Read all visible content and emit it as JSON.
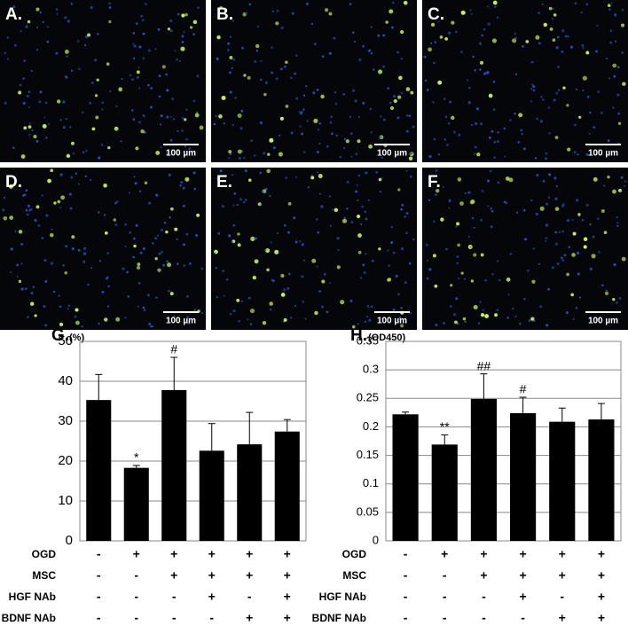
{
  "panels": [
    {
      "label": "A.",
      "scale_bar": "100 µm"
    },
    {
      "label": "B.",
      "scale_bar": "100 µm"
    },
    {
      "label": "C.",
      "scale_bar": "100 µm"
    },
    {
      "label": "D.",
      "scale_bar": "100 µm"
    },
    {
      "label": "E.",
      "scale_bar": "100 µm"
    },
    {
      "label": "F.",
      "scale_bar": "100 µm"
    }
  ],
  "chart_data": [
    {
      "type": "bar",
      "title": "G.",
      "y_label": "(%)",
      "color": "#000000",
      "categories": [
        null,
        null,
        null,
        null,
        null,
        null
      ],
      "values": [
        35.3,
        18.3,
        37.8,
        22.6,
        24.2,
        27.4
      ],
      "errors": [
        6.4,
        0.6,
        8.2,
        6.8,
        8.0,
        3.0
      ],
      "annotations": [
        null,
        "*",
        "#",
        null,
        null,
        null
      ],
      "ylim": [
        0,
        50
      ],
      "yticks": [
        0,
        10,
        20,
        30,
        40,
        50
      ],
      "grid": true,
      "conditions": [
        {
          "label": "OGD",
          "signs": [
            "-",
            "+",
            "+",
            "+",
            "+",
            "+"
          ]
        },
        {
          "label": "MSC",
          "signs": [
            "-",
            "-",
            "+",
            "+",
            "+",
            "+"
          ]
        },
        {
          "label": "HGF NAb",
          "signs": [
            "-",
            "-",
            "-",
            "+",
            "-",
            "+"
          ]
        },
        {
          "label": "BDNF NAb",
          "signs": [
            "-",
            "-",
            "-",
            "-",
            "+",
            "+"
          ]
        }
      ]
    },
    {
      "type": "bar",
      "title": "H.",
      "y_label": "(OD450)",
      "color": "#000000",
      "categories": [
        null,
        null,
        null,
        null,
        null,
        null
      ],
      "values": [
        0.222,
        0.169,
        0.249,
        0.224,
        0.209,
        0.213
      ],
      "errors": [
        0.004,
        0.017,
        0.044,
        0.028,
        0.024,
        0.028
      ],
      "annotations": [
        null,
        "**",
        "##",
        "#",
        null,
        null
      ],
      "ylim": [
        0,
        0.35
      ],
      "yticks": [
        0,
        0.05,
        0.1,
        0.15,
        0.2,
        0.25,
        0.3,
        0.35
      ],
      "grid": true,
      "conditions": [
        {
          "label": "OGD",
          "signs": [
            "-",
            "+",
            "+",
            "+",
            "+",
            "+"
          ]
        },
        {
          "label": "MSC",
          "signs": [
            "-",
            "-",
            "+",
            "+",
            "+",
            "+"
          ]
        },
        {
          "label": "HGF NAb",
          "signs": [
            "-",
            "-",
            "-",
            "+",
            "-",
            "+"
          ]
        },
        {
          "label": "BDNF NAb",
          "signs": [
            "-",
            "-",
            "-",
            "-",
            "+",
            "+"
          ]
        }
      ]
    }
  ]
}
